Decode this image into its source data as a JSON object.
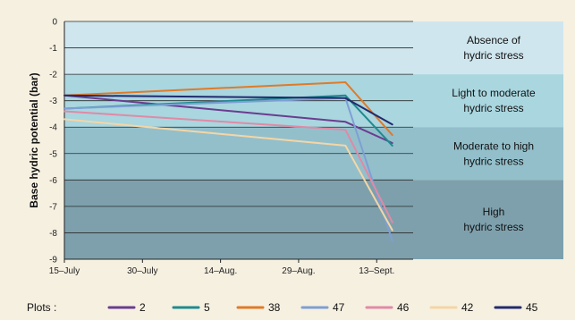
{
  "chart_data": {
    "type": "line",
    "xlabel": "",
    "ylabel": "Base hydric potential (bar)",
    "ylim": [
      -9,
      0
    ],
    "xlim": [
      "15-July",
      "20-Sept."
    ],
    "yticks": [
      0,
      -1,
      -2,
      -3,
      -4,
      -5,
      -6,
      -7,
      -8,
      -9
    ],
    "yticklabels": [
      "0",
      "-1",
      "-2",
      "-3",
      "-4",
      "-5",
      "-6",
      "-7",
      "-8",
      "-9"
    ],
    "xticks": [
      "15-July",
      "30-July",
      "14-Aug.",
      "29-Aug.",
      "13-Sept."
    ],
    "xticklabels": [
      "15–July",
      "30–July",
      "14–Aug.",
      "29–Aug.",
      "13–Sept."
    ],
    "grid": true,
    "zones": [
      {
        "label_lines": [
          "Absence of",
          "hydric stress"
        ],
        "range": [
          0,
          -2
        ],
        "color": "#cfe6ee"
      },
      {
        "label_lines": [
          "Light to moderate",
          "hydric stress"
        ],
        "range": [
          -2,
          -4
        ],
        "color": "#a9d6df"
      },
      {
        "label_lines": [
          "Moderate to high",
          "hydric stress"
        ],
        "range": [
          -4,
          -6
        ],
        "color": "#93bfcb"
      },
      {
        "label_lines": [
          "High",
          "hydric stress"
        ],
        "range": [
          -6,
          -9
        ],
        "color": "#7ea0ad"
      }
    ],
    "legend": {
      "title": "Plots :",
      "placement": "bottom"
    },
    "series": [
      {
        "name": "2",
        "color": "#6a3d8f",
        "points": [
          [
            "15-July",
            -2.8
          ],
          [
            "7-Sept.",
            -3.8
          ],
          [
            "16-Sept.",
            -4.6
          ]
        ]
      },
      {
        "name": "5",
        "color": "#1f8a8f",
        "points": [
          [
            "15-July",
            -3.3
          ],
          [
            "7-Sept.",
            -2.8
          ],
          [
            "16-Sept.",
            -4.7
          ]
        ]
      },
      {
        "name": "38",
        "color": "#e07a28",
        "points": [
          [
            "15-July",
            -2.8
          ],
          [
            "7-Sept.",
            -2.3
          ],
          [
            "16-Sept.",
            -4.3
          ]
        ]
      },
      {
        "name": "47",
        "color": "#7f9fd4",
        "points": [
          [
            "15-July",
            -3.3
          ],
          [
            "7-Sept.",
            -2.9
          ],
          [
            "16-Sept.",
            -8.3
          ]
        ]
      },
      {
        "name": "46",
        "color": "#e08aa6",
        "points": [
          [
            "15-July",
            -3.4
          ],
          [
            "7-Sept.",
            -4.1
          ],
          [
            "16-Sept.",
            -7.6
          ]
        ]
      },
      {
        "name": "42",
        "color": "#f4d6a6",
        "points": [
          [
            "15-July",
            -3.7
          ],
          [
            "7-Sept.",
            -4.7
          ],
          [
            "16-Sept.",
            -7.9
          ]
        ]
      },
      {
        "name": "45",
        "color": "#222a6e",
        "points": [
          [
            "15-July",
            -2.8
          ],
          [
            "7-Sept.",
            -2.9
          ],
          [
            "16-Sept.",
            -3.9
          ]
        ]
      }
    ]
  }
}
